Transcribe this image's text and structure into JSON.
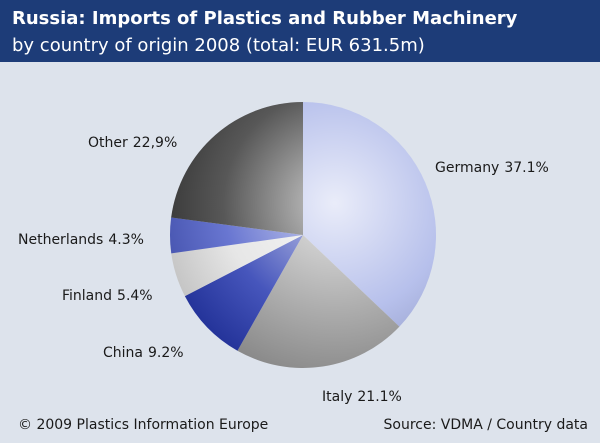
{
  "chart_data": {
    "type": "pie",
    "title": "Russia: Imports of Plastics and Rubber Machinery",
    "subtitle": "by country of origin 2008 (total: EUR 631.5m)",
    "categories": [
      "Germany",
      "Italy",
      "China",
      "Finland",
      "Netherlands",
      "Other"
    ],
    "values": [
      37.1,
      21.1,
      9.2,
      5.4,
      4.3,
      22.9
    ],
    "value_labels": [
      "37.1%",
      "21.1%",
      "9.2%",
      "5.4%",
      "4.3%",
      "22,9%"
    ],
    "colors": [
      "#aab5e8",
      "#9c9c9c",
      "#2638b0",
      "#e2e2e2",
      "#4e5ec9",
      "#3a3a3a"
    ],
    "footer_left": "© 2009 Plastics Information Europe",
    "footer_right": "Source: VDMA / Country data"
  }
}
